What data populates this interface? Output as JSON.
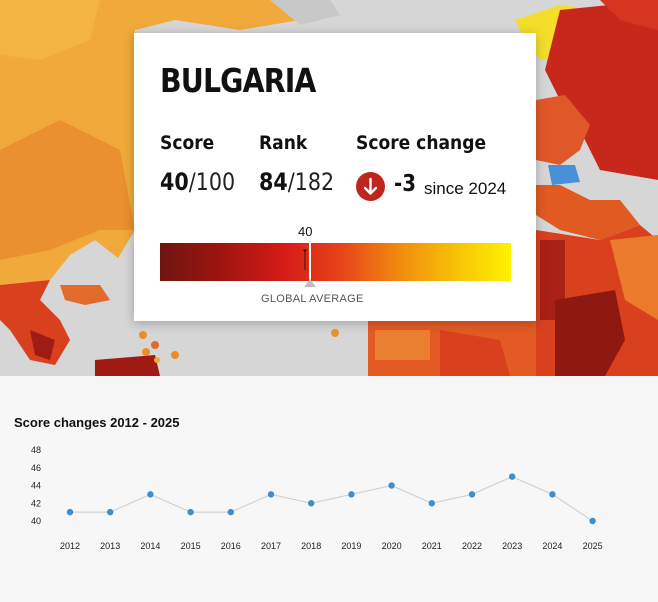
{
  "country": {
    "name": "BULGARIA"
  },
  "stats": {
    "score_label": "Score",
    "score_value": "40",
    "score_max": "/100",
    "rank_label": "Rank",
    "rank_value": "84",
    "rank_total": "/182",
    "change_label": "Score change",
    "change_value": "-3",
    "change_since": "since 2024",
    "change_icon": "arrow-down-icon"
  },
  "scale": {
    "marker_label": "40",
    "marker_value": 40,
    "global_average_label": "GLOBAL AVERAGE",
    "colors": [
      "#6f1510",
      "#d51b17",
      "#f18a10",
      "#fff200"
    ]
  },
  "map": {
    "highlight_color": "#4a90d9"
  },
  "history": {
    "title": "Score changes 2012 - 2025"
  },
  "chart_data": {
    "type": "line",
    "title": "Score changes 2012 - 2025",
    "x": [
      "2012",
      "2013",
      "2014",
      "2015",
      "2016",
      "2017",
      "2018",
      "2019",
      "2020",
      "2021",
      "2022",
      "2023",
      "2024",
      "2025"
    ],
    "series": [
      {
        "values": [
          41,
          41,
          43,
          41,
          41,
          43,
          42,
          43,
          44,
          42,
          43,
          45,
          43,
          40
        ]
      }
    ],
    "yticks": [
      40,
      42,
      44,
      46,
      48
    ],
    "ylim": [
      40,
      48
    ],
    "grid": false,
    "point_color": "#3d8fd0",
    "line_color": "#cccccc"
  }
}
